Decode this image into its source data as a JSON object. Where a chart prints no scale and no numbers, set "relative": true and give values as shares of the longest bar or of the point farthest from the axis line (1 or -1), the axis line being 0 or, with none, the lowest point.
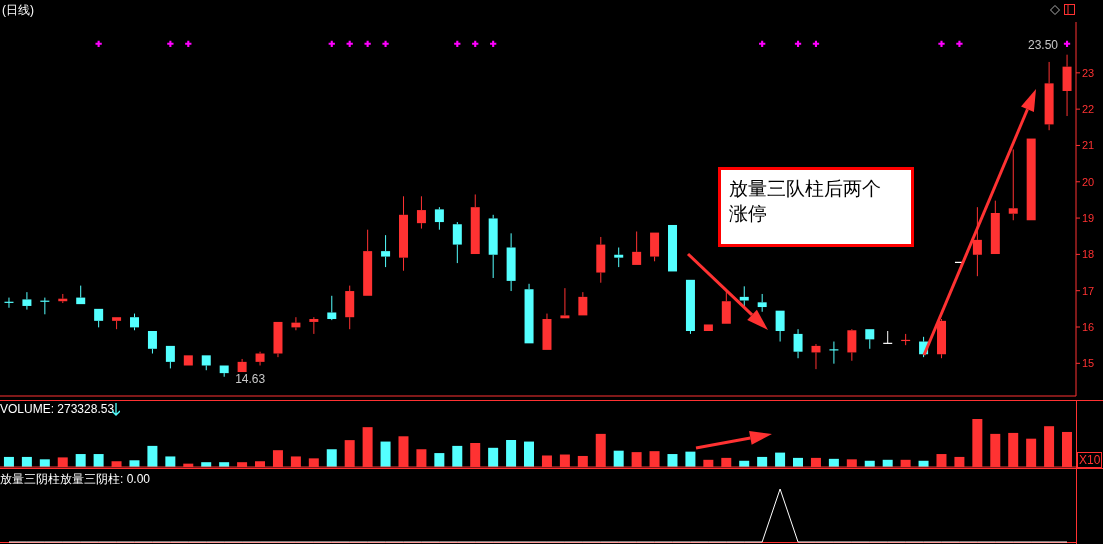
{
  "chart_data": [
    {
      "type": "candlestick",
      "title": "(日线)",
      "categories": [
        null,
        null,
        null,
        null,
        null,
        null,
        null,
        null,
        null,
        null,
        null,
        null,
        null,
        null,
        null,
        null,
        null,
        null,
        null,
        null,
        null,
        null,
        null,
        null,
        null,
        null,
        null,
        null,
        null,
        null,
        null,
        null,
        null,
        null,
        null,
        null,
        null,
        null,
        null,
        null,
        null,
        null,
        null,
        null,
        null,
        null,
        null,
        null,
        null,
        null,
        null,
        null,
        null,
        null,
        null,
        null,
        null,
        null,
        null,
        null
      ],
      "ohlc": [
        [
          16.68,
          16.81,
          16.53,
          16.68
        ],
        [
          16.76,
          16.96,
          16.48,
          16.58
        ],
        [
          16.71,
          16.81,
          16.35,
          16.71
        ],
        [
          16.71,
          16.91,
          16.66,
          16.78
        ],
        [
          16.81,
          17.14,
          16.63,
          16.63
        ],
        [
          16.5,
          16.5,
          15.99,
          16.17
        ],
        [
          16.17,
          16.27,
          15.94,
          16.27
        ],
        [
          16.27,
          16.37,
          15.91,
          15.99
        ],
        [
          15.89,
          15.89,
          15.27,
          15.4
        ],
        [
          15.48,
          15.48,
          14.86,
          15.04
        ],
        [
          14.94,
          15.22,
          14.94,
          15.22
        ],
        [
          15.22,
          15.22,
          14.81,
          14.94
        ],
        [
          14.94,
          14.94,
          14.63,
          14.73
        ],
        [
          14.76,
          15.12,
          14.76,
          15.04
        ],
        [
          15.04,
          15.32,
          14.94,
          15.27
        ],
        [
          15.27,
          16.14,
          15.17,
          16.14
        ],
        [
          15.99,
          16.27,
          15.91,
          16.12
        ],
        [
          16.14,
          16.27,
          15.81,
          16.22
        ],
        [
          16.4,
          16.86,
          16.19,
          16.22
        ],
        [
          16.27,
          17.14,
          15.94,
          16.99
        ],
        [
          16.86,
          18.68,
          16.86,
          18.09
        ],
        [
          18.09,
          18.53,
          17.65,
          17.94
        ],
        [
          17.91,
          19.6,
          17.55,
          19.09
        ],
        [
          18.86,
          19.6,
          18.71,
          19.22
        ],
        [
          19.24,
          19.3,
          18.68,
          18.89
        ],
        [
          18.83,
          18.89,
          17.76,
          18.27
        ],
        [
          18.01,
          19.65,
          18.01,
          19.3
        ],
        [
          18.99,
          19.09,
          17.35,
          17.99
        ],
        [
          18.19,
          18.58,
          16.99,
          17.27
        ],
        [
          17.04,
          17.19,
          15.55,
          15.55
        ],
        [
          15.37,
          16.37,
          15.37,
          16.22
        ],
        [
          16.24,
          17.07,
          16.24,
          16.32
        ],
        [
          16.32,
          16.96,
          16.32,
          16.83
        ],
        [
          17.5,
          18.48,
          17.22,
          18.27
        ],
        [
          17.99,
          18.19,
          17.65,
          17.91
        ],
        [
          17.71,
          18.63,
          17.71,
          18.07
        ],
        [
          17.94,
          18.6,
          17.81,
          18.6
        ],
        [
          18.81,
          18.81,
          17.53,
          17.53
        ],
        [
          17.3,
          17.3,
          15.81,
          15.89
        ],
        [
          15.89,
          16.07,
          15.89,
          16.07
        ],
        [
          16.09,
          17.01,
          16.09,
          16.71
        ],
        [
          16.83,
          17.12,
          16.53,
          16.73
        ],
        [
          16.68,
          16.91,
          16.42,
          16.55
        ],
        [
          16.45,
          16.45,
          15.6,
          15.89
        ],
        [
          15.81,
          15.94,
          15.14,
          15.32
        ],
        [
          15.3,
          15.53,
          14.84,
          15.48
        ],
        [
          15.37,
          15.6,
          14.99,
          15.37
        ],
        [
          15.3,
          15.94,
          15.07,
          15.91
        ],
        [
          15.94,
          15.94,
          15.4,
          15.66
        ],
        [
          15.55,
          15.89,
          15.55,
          15.55
        ],
        [
          15.63,
          15.81,
          15.5,
          15.63
        ],
        [
          15.6,
          15.73,
          15.17,
          15.25
        ],
        [
          15.25,
          16.22,
          15.14,
          16.17
        ],
        [
          17.78,
          17.78,
          17.78,
          17.78
        ],
        [
          17.99,
          19.3,
          17.4,
          18.4
        ],
        [
          18.01,
          19.48,
          18.01,
          19.14
        ],
        [
          19.12,
          20.89,
          18.94,
          19.27
        ],
        [
          18.94,
          21.19,
          18.94,
          21.19
        ],
        [
          21.58,
          23.3,
          21.42,
          22.71
        ],
        [
          22.5,
          23.5,
          21.81,
          23.17
        ]
      ],
      "colors": [
        "#54ffff",
        "#54ffff",
        "#54ffff",
        "#ff3232",
        "#54ffff",
        "#54ffff",
        "#ff3232",
        "#54ffff",
        "#54ffff",
        "#54ffff",
        "#ff3232",
        "#54ffff",
        "#54ffff",
        "#ff3232",
        "#ff3232",
        "#ff3232",
        "#ff3232",
        "#ff3232",
        "#54ffff",
        "#ff3232",
        "#ff3232",
        "#54ffff",
        "#ff3232",
        "#ff3232",
        "#54ffff",
        "#54ffff",
        "#ff3232",
        "#54ffff",
        "#54ffff",
        "#54ffff",
        "#ff3232",
        "#ff3232",
        "#ff3232",
        "#ff3232",
        "#54ffff",
        "#ff3232",
        "#ff3232",
        "#54ffff",
        "#54ffff",
        "#ff3232",
        "#ff3232",
        "#54ffff",
        "#54ffff",
        "#54ffff",
        "#54ffff",
        "#ff3232",
        "#54ffff",
        "#ff3232",
        "#54ffff",
        "#ffffff",
        "#ff3232",
        "#54ffff",
        "#ff3232",
        "#ffffff",
        "#ff3232",
        "#ff3232",
        "#ff3232",
        "#ff3232",
        "#ff3232",
        "#ff3232"
      ],
      "series": [
        {
          "type": "scatter",
          "color": "#ff00ff",
          "marker": "cross",
          "values": [
            null,
            null,
            null,
            null,
            null,
            23.8,
            null,
            null,
            null,
            23.8,
            23.8,
            null,
            null,
            null,
            null,
            null,
            null,
            null,
            23.8,
            23.8,
            23.8,
            23.8,
            null,
            null,
            null,
            23.8,
            23.8,
            23.8,
            null,
            null,
            null,
            null,
            null,
            null,
            null,
            null,
            null,
            null,
            null,
            null,
            null,
            null,
            23.8,
            null,
            23.8,
            23.8,
            null,
            null,
            null,
            null,
            null,
            null,
            23.8,
            23.8,
            null,
            null,
            null,
            null,
            null,
            23.8
          ]
        }
      ],
      "ylim": [
        14.1,
        24.4
      ],
      "yticks": [
        15,
        16,
        17,
        18,
        19,
        20,
        21,
        22,
        23
      ],
      "tick_labels": "y",
      "annotations": [
        "14.63",
        "23.50",
        "放量三队柱后两个涨停"
      ]
    },
    {
      "type": "bar",
      "relative": true,
      "title": "VOLUME: 273328.53",
      "categories": [
        null,
        null,
        null,
        null,
        null,
        null,
        null,
        null,
        null,
        null,
        null,
        null,
        null,
        null,
        null,
        null,
        null,
        null,
        null,
        null,
        null,
        null,
        null,
        null,
        null,
        null,
        null,
        null,
        null,
        null,
        null,
        null,
        null,
        null,
        null,
        null,
        null,
        null,
        null,
        null,
        null,
        null,
        null,
        null,
        null,
        null,
        null,
        null,
        null,
        null,
        null,
        null,
        null,
        null,
        null,
        null,
        null,
        null,
        null,
        null
      ],
      "values": [
        0.21,
        0.21,
        0.16,
        0.2,
        0.27,
        0.27,
        0.12,
        0.14,
        0.44,
        0.22,
        0.07,
        0.1,
        0.1,
        0.1,
        0.12,
        0.35,
        0.22,
        0.18,
        0.37,
        0.56,
        0.83,
        0.53,
        0.64,
        0.37,
        0.29,
        0.44,
        0.5,
        0.4,
        0.56,
        0.53,
        0.24,
        0.26,
        0.23,
        0.69,
        0.34,
        0.31,
        0.33,
        0.27,
        0.32,
        0.15,
        0.19,
        0.13,
        0.21,
        0.3,
        0.19,
        0.19,
        0.17,
        0.16,
        0.13,
        0.15,
        0.15,
        0.13,
        0.27,
        0.21,
        1,
        0.69,
        0.71,
        0.59,
        0.85,
        0.73
      ],
      "colors": [
        "#54ffff",
        "#54ffff",
        "#54ffff",
        "#ff3232",
        "#54ffff",
        "#54ffff",
        "#ff3232",
        "#54ffff",
        "#54ffff",
        "#54ffff",
        "#ff3232",
        "#54ffff",
        "#54ffff",
        "#ff3232",
        "#ff3232",
        "#ff3232",
        "#ff3232",
        "#ff3232",
        "#54ffff",
        "#ff3232",
        "#ff3232",
        "#54ffff",
        "#ff3232",
        "#ff3232",
        "#54ffff",
        "#54ffff",
        "#ff3232",
        "#54ffff",
        "#54ffff",
        "#54ffff",
        "#ff3232",
        "#ff3232",
        "#ff3232",
        "#ff3232",
        "#54ffff",
        "#ff3232",
        "#ff3232",
        "#54ffff",
        "#54ffff",
        "#ff3232",
        "#ff3232",
        "#54ffff",
        "#54ffff",
        "#54ffff",
        "#54ffff",
        "#ff3232",
        "#54ffff",
        "#ff3232",
        "#54ffff",
        "#54ffff",
        "#ff3232",
        "#54ffff",
        "#ff3232",
        "#ff3232",
        "#ff3232",
        "#ff3232",
        "#ff3232",
        "#ff3232",
        "#ff3232",
        "#ff3232"
      ],
      "tick_labels": false,
      "annotations": [
        "X10"
      ]
    },
    {
      "type": "line",
      "relative": true,
      "title": "放量三阴柱",
      "subtitle": "放量三阴柱: 0.00",
      "categories": [
        null,
        null,
        null,
        null,
        null,
        null,
        null,
        null,
        null,
        null,
        null,
        null,
        null,
        null,
        null,
        null,
        null,
        null,
        null,
        null,
        null,
        null,
        null,
        null,
        null,
        null,
        null,
        null,
        null,
        null,
        null,
        null,
        null,
        null,
        null,
        null,
        null,
        null,
        null,
        null,
        null,
        null,
        null,
        null,
        null,
        null,
        null,
        null,
        null,
        null,
        null,
        null,
        null,
        null,
        null,
        null,
        null,
        null,
        null,
        null
      ],
      "series": [
        {
          "color": "#ffffff",
          "values": [
            0,
            0,
            0,
            0,
            0,
            0,
            0,
            0,
            0,
            0,
            0,
            0,
            0,
            0,
            0,
            0,
            0,
            0,
            0,
            0,
            0,
            0,
            0,
            0,
            0,
            0,
            0,
            0,
            0,
            0,
            0,
            0,
            0,
            0,
            0,
            0,
            0,
            0,
            0,
            0,
            0,
            0,
            0,
            1,
            0,
            0,
            0,
            0,
            0,
            0,
            0,
            0,
            0,
            0,
            0,
            0,
            0,
            0,
            0,
            0
          ]
        }
      ],
      "tick_labels": false
    }
  ]
}
